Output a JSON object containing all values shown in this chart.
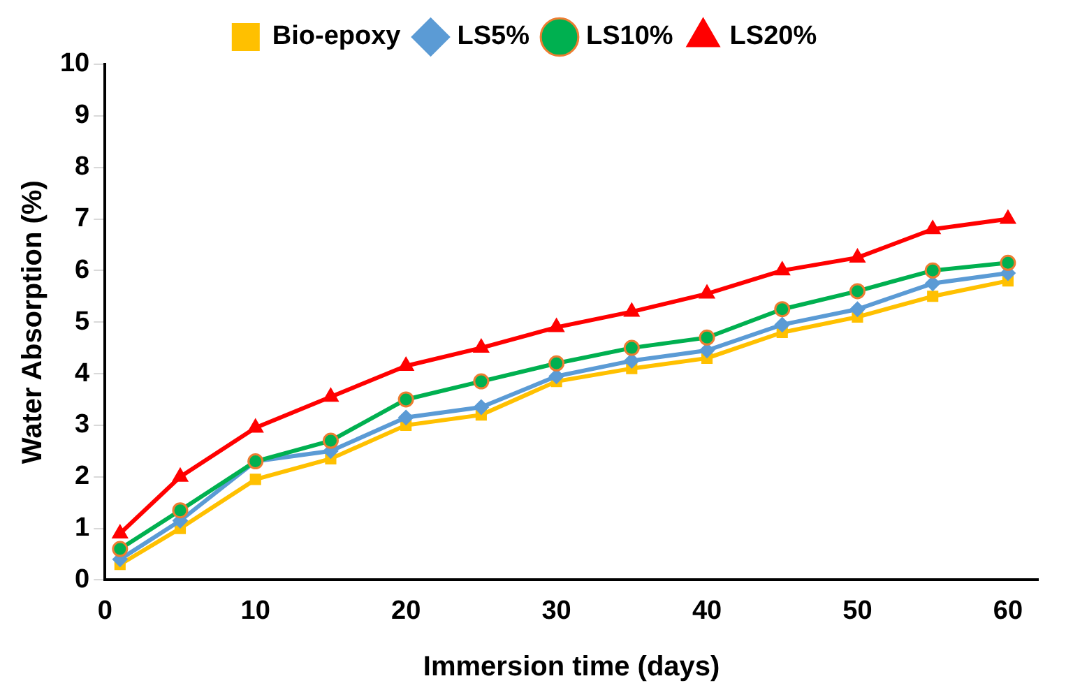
{
  "chart_data": {
    "type": "line",
    "xlabel": "Immersion time (days)",
    "ylabel": "Water Absorption (%)",
    "x": [
      1,
      5,
      10,
      15,
      20,
      25,
      30,
      35,
      40,
      45,
      50,
      55,
      60
    ],
    "xlim": [
      0,
      62
    ],
    "xticks": [
      0,
      10,
      20,
      30,
      40,
      50,
      60
    ],
    "ylim": [
      0,
      10
    ],
    "yticks": [
      0,
      1,
      2,
      3,
      4,
      5,
      6,
      7,
      8,
      9,
      10
    ],
    "grid": false,
    "legend": "top",
    "series": [
      {
        "name": "Bio-epoxy",
        "color": "#ffc000",
        "marker": "square",
        "values": [
          0.3,
          1.0,
          1.95,
          2.35,
          3.0,
          3.2,
          3.85,
          4.1,
          4.3,
          4.8,
          5.1,
          5.5,
          5.8
        ]
      },
      {
        "name": "LS5%",
        "color": "#5b9bd5",
        "marker": "diamond",
        "values": [
          0.4,
          1.15,
          2.3,
          2.5,
          3.15,
          3.35,
          3.95,
          4.25,
          4.45,
          4.95,
          5.25,
          5.75,
          5.95
        ]
      },
      {
        "name": "LS10%",
        "color": "#00b050",
        "marker": "circle",
        "values": [
          0.6,
          1.35,
          2.3,
          2.7,
          3.5,
          3.85,
          4.2,
          4.5,
          4.7,
          5.25,
          5.6,
          6.0,
          6.15
        ]
      },
      {
        "name": "LS20%",
        "color": "#ff0000",
        "marker": "triangle",
        "values": [
          0.9,
          2.0,
          2.95,
          3.55,
          4.15,
          4.5,
          4.9,
          5.2,
          5.55,
          6.0,
          6.25,
          6.8,
          7.0
        ]
      }
    ]
  }
}
